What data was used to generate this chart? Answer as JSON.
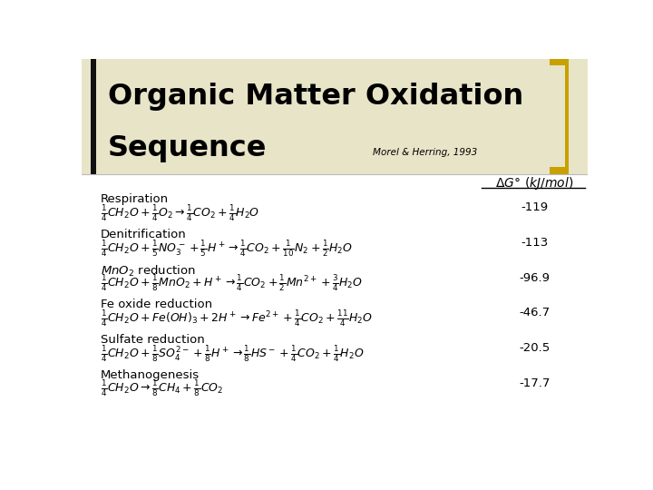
{
  "title_line1": "Organic Matter Oxidation",
  "title_line2": "Sequence",
  "citation": "Morel & Herring, 1993",
  "bg_color": "#ffffff",
  "title_bg_color": "#e8e4c8",
  "title_color": "#000000",
  "bracket_color": "#c8a000",
  "rows": [
    {
      "label": "Respiration",
      "equation": "$\\frac{1}{4}CH_2O + \\frac{1}{4}O_2 \\rightarrow \\frac{1}{4}CO_2 + \\frac{1}{4}H_2O$",
      "dg": "-119"
    },
    {
      "label": "Denitrification",
      "equation": "$\\frac{1}{4}CH_2O + \\frac{1}{5}NO_3^- + \\frac{1}{5}H^+ \\rightarrow \\frac{1}{4}CO_2 + \\frac{1}{10}N_2 + \\frac{1}{2}H_2O$",
      "dg": "-113"
    },
    {
      "label": "$MnO_2$ reduction",
      "equation": "$\\frac{1}{4}CH_2O + \\frac{1}{8}MnO_2 + H^+ \\rightarrow \\frac{1}{4}CO_2 + \\frac{1}{2}Mn^{2+} + \\frac{3}{4}H_2O$",
      "dg": "-96.9"
    },
    {
      "label": "Fe oxide reduction",
      "equation": "$\\frac{1}{4}CH_2O + Fe(OH)_3 + 2H^+ \\rightarrow Fe^{2+} + \\frac{1}{4}CO_2 + \\frac{11}{4}H_2O$",
      "dg": "-46.7"
    },
    {
      "label": "Sulfate reduction",
      "equation": "$\\frac{1}{4}CH_2O + \\frac{1}{8}SO_4^{2-} + \\frac{1}{8}H^+ \\rightarrow \\frac{1}{8}HS^- + \\frac{1}{4}CO_2 + \\frac{1}{4}H_2O$",
      "dg": "-20.5"
    },
    {
      "label": "Methanogenesis",
      "equation": "$\\frac{1}{4}CH_2O \\rightarrow \\frac{1}{8}CH_4 + \\frac{1}{8}CO_2$",
      "dg": "-17.7"
    }
  ]
}
